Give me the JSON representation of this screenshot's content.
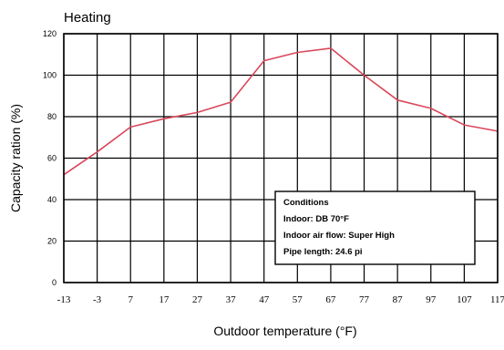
{
  "chart_data": {
    "type": "line",
    "title": "Heating",
    "xlabel": "Outdoor temperature (°F)",
    "ylabel": "Capacity ration (%)",
    "x_ticks": [
      "-13",
      "-3",
      "7",
      "17",
      "27",
      "37",
      "47",
      "57",
      "67",
      "77",
      "87",
      "97",
      "107",
      "117"
    ],
    "x_range": [
      -13,
      117
    ],
    "y_ticks": [
      "0",
      "20",
      "40",
      "60",
      "80",
      "100",
      "120"
    ],
    "y_range": [
      0,
      120
    ],
    "grid": true,
    "series": [
      {
        "color": "#d9475a",
        "x": [
          -13,
          -3,
          7,
          17,
          27,
          37,
          47,
          57,
          67,
          77,
          87,
          97,
          107,
          117
        ],
        "y": [
          52,
          63,
          75,
          79,
          82,
          87,
          107,
          111,
          113,
          100,
          88,
          84,
          76,
          73
        ]
      }
    ],
    "annotation": {
      "heading": "Conditions",
      "lines": [
        "Indoor: DB 70°F",
        "Indoor air flow: Super High",
        "Pipe length: 24.6 pi"
      ],
      "placement": "bottom-right"
    }
  }
}
